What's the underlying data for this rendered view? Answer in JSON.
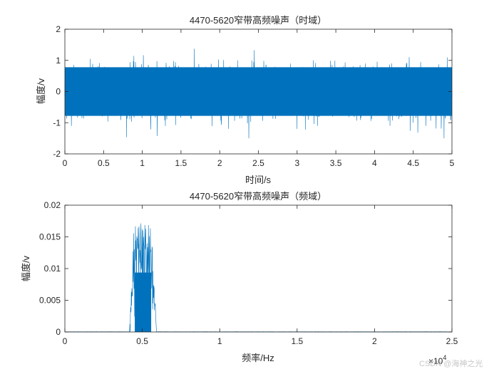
{
  "chart_data": [
    {
      "type": "line",
      "title": "4470-5620窄带高频噪声（时域）",
      "xlabel": "时间/s",
      "ylabel": "幅度/v",
      "xlim": [
        0,
        5
      ],
      "ylim": [
        -2,
        2
      ],
      "xticks": [
        0,
        0.5,
        1,
        1.5,
        2,
        2.5,
        3,
        3.5,
        4,
        4.5,
        5
      ],
      "xtick_labels": [
        "0",
        "0.5",
        "1",
        "1.5",
        "2",
        "2.5",
        "3",
        "3.5",
        "4",
        "4.5",
        "5"
      ],
      "yticks": [
        -2,
        -1,
        0,
        1,
        2
      ],
      "ytick_labels": [
        "-2",
        "-1",
        "0",
        "1",
        "2"
      ],
      "grid": false,
      "series": [
        {
          "color": "#0072BD",
          "description_range": [
            -1.5,
            1.5
          ],
          "typical_envelope": 1.0
        }
      ]
    },
    {
      "type": "line",
      "title": "4470-5620窄带高频噪声（频域）",
      "xlabel": "频率/Hz",
      "ylabel": "幅度/v",
      "xlim": [
        0,
        25000
      ],
      "ylim": [
        0,
        0.02
      ],
      "xticks": [
        0,
        5000,
        10000,
        15000,
        20000,
        25000
      ],
      "xtick_labels": [
        "0",
        "0.5",
        "1",
        "1.5",
        "2",
        "2.5"
      ],
      "x_exponent_base": "×10",
      "x_exponent_power": "4",
      "yticks": [
        0,
        0.005,
        0.01,
        0.015,
        0.02
      ],
      "ytick_labels": [
        "0",
        "0.005",
        "0.01",
        "0.015",
        "0.02"
      ],
      "grid": false,
      "series": [
        {
          "color": "#0072BD",
          "band_hz": [
            4470,
            5620
          ],
          "peak": 0.0172,
          "typical_level": 0.0125
        }
      ]
    }
  ],
  "watermark": "CSDN @海神之光"
}
